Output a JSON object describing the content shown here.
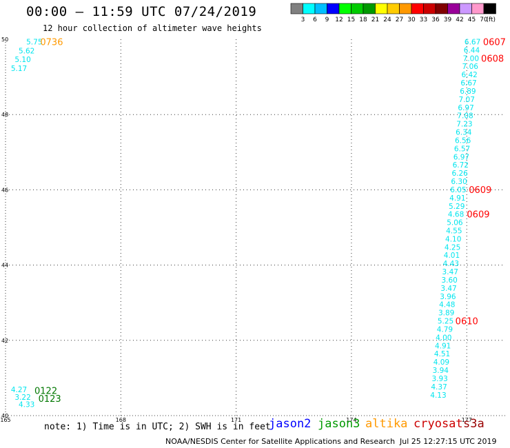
{
  "header": {
    "title": "00:00 – 11:59 UTC 07/24/2019",
    "subtitle": "12 hour collection of altimeter wave heights"
  },
  "colorbar": {
    "unit": "(ft)",
    "entries": [
      {
        "label": "3",
        "color": "#808080"
      },
      {
        "label": "6",
        "color": "#00ffff"
      },
      {
        "label": "9",
        "color": "#00bfff"
      },
      {
        "label": "12",
        "color": "#0000ff"
      },
      {
        "label": "15",
        "color": "#00ff00"
      },
      {
        "label": "18",
        "color": "#00cc00"
      },
      {
        "label": "21",
        "color": "#009900"
      },
      {
        "label": "24",
        "color": "#ffff00"
      },
      {
        "label": "27",
        "color": "#ffcc00"
      },
      {
        "label": "30",
        "color": "#ff9900"
      },
      {
        "label": "33",
        "color": "#ff0000"
      },
      {
        "label": "36",
        "color": "#cc0000"
      },
      {
        "label": "39",
        "color": "#800000"
      },
      {
        "label": "42",
        "color": "#990099"
      },
      {
        "label": "45",
        "color": "#cc99ff"
      },
      {
        "label": "70",
        "color": "#ff99cc"
      },
      {
        "label": "",
        "color": "#000000"
      }
    ]
  },
  "chart_data": {
    "type": "scatter",
    "xlim": [
      165,
      178
    ],
    "ylim": [
      40,
      50
    ],
    "x_ticks": [
      "165",
      "168",
      "171",
      "174",
      "177"
    ],
    "y_ticks": [
      "40",
      "42",
      "44",
      "46",
      "48",
      "50"
    ],
    "grid": true,
    "value_color": "#00e5ee",
    "points": [
      {
        "x": 165.75,
        "y": 49.94,
        "v": "5.75"
      },
      {
        "x": 165.55,
        "y": 49.7,
        "v": "5.62"
      },
      {
        "x": 165.45,
        "y": 49.47,
        "v": "5.10"
      },
      {
        "x": 165.35,
        "y": 49.23,
        "v": "5.17"
      },
      {
        "x": 177.15,
        "y": 49.94,
        "v": "6.67"
      },
      {
        "x": 177.13,
        "y": 49.72,
        "v": "6.44"
      },
      {
        "x": 177.11,
        "y": 49.5,
        "v": "7.00"
      },
      {
        "x": 177.09,
        "y": 49.29,
        "v": "7.06"
      },
      {
        "x": 177.07,
        "y": 49.07,
        "v": "6.42"
      },
      {
        "x": 177.05,
        "y": 48.85,
        "v": "6.67"
      },
      {
        "x": 177.03,
        "y": 48.63,
        "v": "6.89"
      },
      {
        "x": 177.0,
        "y": 48.41,
        "v": "7.07"
      },
      {
        "x": 176.98,
        "y": 48.19,
        "v": "6.97"
      },
      {
        "x": 176.96,
        "y": 47.98,
        "v": "7.08"
      },
      {
        "x": 176.94,
        "y": 47.76,
        "v": "7.23"
      },
      {
        "x": 176.92,
        "y": 47.54,
        "v": "6.34"
      },
      {
        "x": 176.9,
        "y": 47.32,
        "v": "6.56"
      },
      {
        "x": 176.88,
        "y": 47.1,
        "v": "6.57"
      },
      {
        "x": 176.86,
        "y": 46.88,
        "v": "6.97"
      },
      {
        "x": 176.84,
        "y": 46.67,
        "v": "6.72"
      },
      {
        "x": 176.82,
        "y": 46.45,
        "v": "6.26"
      },
      {
        "x": 176.8,
        "y": 46.23,
        "v": "6.30"
      },
      {
        "x": 176.78,
        "y": 46.01,
        "v": "6.05"
      },
      {
        "x": 176.76,
        "y": 45.79,
        "v": "4.91"
      },
      {
        "x": 176.74,
        "y": 45.57,
        "v": "5.29"
      },
      {
        "x": 176.72,
        "y": 45.36,
        "v": "4.68"
      },
      {
        "x": 176.69,
        "y": 45.14,
        "v": "5.06"
      },
      {
        "x": 176.67,
        "y": 44.92,
        "v": "4.55"
      },
      {
        "x": 176.65,
        "y": 44.7,
        "v": "4.10"
      },
      {
        "x": 176.63,
        "y": 44.48,
        "v": "4.25"
      },
      {
        "x": 176.61,
        "y": 44.27,
        "v": "4.01"
      },
      {
        "x": 176.59,
        "y": 44.05,
        "v": "4.43"
      },
      {
        "x": 176.57,
        "y": 43.83,
        "v": "3.47"
      },
      {
        "x": 176.55,
        "y": 43.61,
        "v": "3.60"
      },
      {
        "x": 176.53,
        "y": 43.39,
        "v": "3.47"
      },
      {
        "x": 176.51,
        "y": 43.17,
        "v": "3.96"
      },
      {
        "x": 176.49,
        "y": 42.96,
        "v": "4.48"
      },
      {
        "x": 176.47,
        "y": 42.74,
        "v": "3.89"
      },
      {
        "x": 176.45,
        "y": 42.52,
        "v": "5.25"
      },
      {
        "x": 176.43,
        "y": 42.3,
        "v": "4.79"
      },
      {
        "x": 176.4,
        "y": 42.08,
        "v": "4.00"
      },
      {
        "x": 176.38,
        "y": 41.86,
        "v": "4.91"
      },
      {
        "x": 176.36,
        "y": 41.65,
        "v": "4.51"
      },
      {
        "x": 176.34,
        "y": 41.43,
        "v": "4.09"
      },
      {
        "x": 176.32,
        "y": 41.21,
        "v": "3.94"
      },
      {
        "x": 176.3,
        "y": 40.99,
        "v": "3.93"
      },
      {
        "x": 176.28,
        "y": 40.77,
        "v": "4.37"
      },
      {
        "x": 176.26,
        "y": 40.55,
        "v": "4.13"
      },
      {
        "x": 165.35,
        "y": 40.7,
        "v": "4.27"
      },
      {
        "x": 165.45,
        "y": 40.49,
        "v": "3.22"
      },
      {
        "x": 165.55,
        "y": 40.3,
        "v": "4.33"
      }
    ],
    "time_labels": [
      {
        "x": 166.2,
        "y": 49.94,
        "text": "0736",
        "color": "#ff9900"
      },
      {
        "x": 177.72,
        "y": 49.94,
        "text": "0607",
        "color": "#ff0000"
      },
      {
        "x": 177.67,
        "y": 49.5,
        "text": "0608",
        "color": "#ff0000"
      },
      {
        "x": 177.35,
        "y": 46.01,
        "text": "0609",
        "color": "#ff0000"
      },
      {
        "x": 177.3,
        "y": 45.36,
        "text": "0609",
        "color": "#ff0000"
      },
      {
        "x": 177.0,
        "y": 42.52,
        "text": "0610",
        "color": "#ff0000"
      },
      {
        "x": 166.05,
        "y": 40.67,
        "text": "0122",
        "color": "#007700"
      },
      {
        "x": 166.15,
        "y": 40.46,
        "text": "0123",
        "color": "#007700"
      }
    ]
  },
  "footer": {
    "note": "note: 1) Time is in UTC; 2) SWH is in feet",
    "satellites": [
      {
        "name": "jason2",
        "color": "#0000ff"
      },
      {
        "name": "jason3",
        "color": "#009900"
      },
      {
        "name": "altika",
        "color": "#ff9900"
      },
      {
        "name": "cryosat",
        "color": "#cc0000"
      },
      {
        "name": "s3a",
        "color": "#990000"
      }
    ],
    "credit": "NOAA/NESDIS Center for Satellite Applications and Research",
    "timestamp": "Jul 25 12:27:15 UTC 2019"
  }
}
